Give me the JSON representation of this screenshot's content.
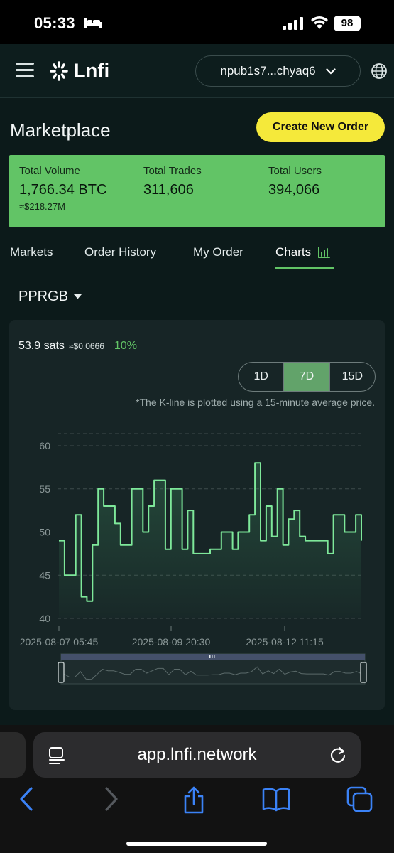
{
  "status_bar": {
    "time": "05:33",
    "battery": "98"
  },
  "header": {
    "logo_text": "Lnfi",
    "account": "npub1s7...chyaq6"
  },
  "page": {
    "title": "Marketplace",
    "create_button": "Create New Order"
  },
  "stats": {
    "total_volume_label": "Total Volume",
    "total_volume_value": "1,766.34 BTC",
    "total_volume_usd": "≈$218.27M",
    "total_trades_label": "Total Trades",
    "total_trades_value": "311,606",
    "total_users_label": "Total Users",
    "total_users_value": "394,066"
  },
  "tabs": [
    {
      "label": "Markets",
      "active": false
    },
    {
      "label": "Order History",
      "active": false
    },
    {
      "label": "My Order",
      "active": false
    },
    {
      "label": "Charts",
      "active": true
    }
  ],
  "pair": {
    "selected": "PPRGB"
  },
  "price": {
    "main": "53.9 sats",
    "usd": "≈$0.0666",
    "change": "10%"
  },
  "ranges": [
    {
      "label": "1D",
      "active": false
    },
    {
      "label": "7D",
      "active": true
    },
    {
      "label": "15D",
      "active": false
    }
  ],
  "kline_note": "*The K-line is plotted using a 15-minute average price.",
  "chart_data": {
    "type": "line",
    "x_tick_labels": [
      "2025-08-07 05:45",
      "2025-08-09 20:30",
      "2025-08-12 11:15"
    ],
    "ylim": [
      40,
      60
    ],
    "y_ticks": [
      60,
      55,
      50,
      45,
      40
    ],
    "grid": "horizontal dashed",
    "line_color": "#7ee89a",
    "series": [
      {
        "values": [
          49,
          45,
          45,
          52,
          42.5,
          42,
          48.5,
          55,
          53,
          53,
          51,
          48.5,
          48.5,
          55,
          55,
          50,
          53,
          56,
          56,
          48,
          55,
          55,
          48,
          52.5,
          47.5,
          47.5,
          47.5,
          48,
          48,
          50,
          50,
          48,
          50,
          50,
          52,
          58,
          49,
          53,
          49.5,
          55,
          48.5,
          51.5,
          52.5,
          49.5,
          49,
          49,
          49,
          49,
          47.5,
          52,
          52,
          50,
          50,
          52,
          49
        ]
      }
    ]
  },
  "browser": {
    "url": "app.lnfi.network"
  }
}
